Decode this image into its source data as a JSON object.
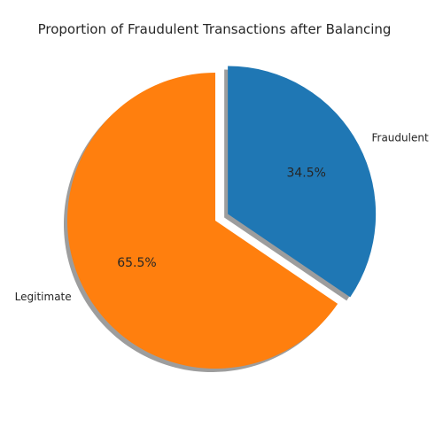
{
  "chart_data": {
    "type": "pie",
    "title": "Proportion of Fraudulent Transactions after Balancing",
    "slices": [
      {
        "label": "Fraudulent",
        "value": 34.5,
        "pct_label": "34.5%",
        "color": "#1f77b4",
        "exploded": true
      },
      {
        "label": "Legitimate",
        "value": 65.5,
        "pct_label": "65.5%",
        "color": "#ff7f0e",
        "exploded": false
      }
    ],
    "shadow": true,
    "start_angle_deg": 90,
    "direction": "clockwise"
  }
}
